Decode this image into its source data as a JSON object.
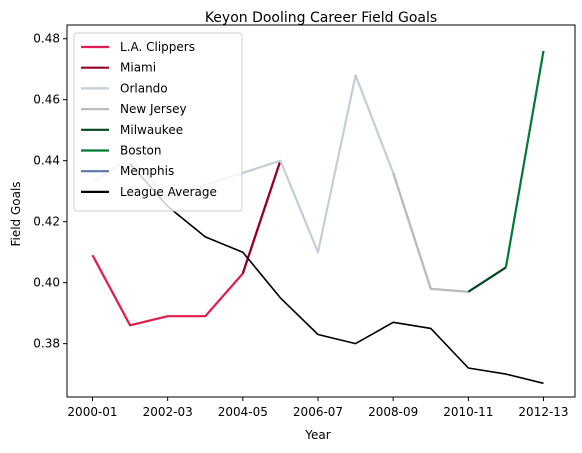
{
  "chart_data": {
    "type": "line",
    "title": "Keyon Dooling Career Field Goals",
    "xlabel": "Year",
    "ylabel": "Field Goals",
    "x": [
      "2000-01",
      "2001-02",
      "2002-03",
      "2003-04",
      "2004-05",
      "2005-06",
      "2006-07",
      "2007-08",
      "2008-09",
      "2009-10",
      "2010-11",
      "2011-12",
      "2012-13"
    ],
    "x_tick_labels": [
      "2000-01",
      "2002-03",
      "2004-05",
      "2006-07",
      "2008-09",
      "2010-11",
      "2012-13"
    ],
    "y_ticks": [
      "0.38",
      "0.40",
      "0.42",
      "0.44",
      "0.46",
      "0.48"
    ],
    "ylim": [
      0.3625,
      0.4845
    ],
    "grid": false,
    "legend_position": "top-left",
    "series": [
      {
        "name": "L.A. Clippers",
        "color": "#e31b4d",
        "points": [
          [
            "2000-01",
            0.409
          ],
          [
            "2001-02",
            0.386
          ],
          [
            "2002-03",
            0.389
          ],
          [
            "2003-04",
            0.389
          ],
          [
            "2004-05",
            0.403
          ],
          [
            "2005-06",
            0.44
          ]
        ]
      },
      {
        "name": "Miami",
        "color": "#98002e",
        "points": [
          [
            "2004-05",
            0.403
          ],
          [
            "2005-06",
            0.44
          ]
        ]
      },
      {
        "name": "Orlando",
        "color": "#c4ced4",
        "points": [
          [
            "2000-01",
            0.433
          ],
          [
            "2001-02",
            0.441
          ],
          [
            "2002-03",
            0.428
          ],
          [
            "2005-06",
            0.44
          ],
          [
            "2006-07",
            0.41
          ],
          [
            "2007-08",
            0.468
          ],
          [
            "2008-09",
            0.436
          ],
          [
            "2009-10",
            0.398
          ],
          [
            "2010-11",
            0.397
          ]
        ]
      },
      {
        "name": "New Jersey",
        "color": "#bbbbbb",
        "points": [
          [
            "2008-09",
            0.436
          ],
          [
            "2009-10",
            0.398
          ],
          [
            "2010-11",
            0.397
          ]
        ]
      },
      {
        "name": "Milwaukee",
        "color": "#00471b",
        "points": [
          [
            "2010-11",
            0.397
          ],
          [
            "2011-12",
            0.405
          ]
        ]
      },
      {
        "name": "Boston",
        "color": "#007a33",
        "points": [
          [
            "2011-12",
            0.405
          ],
          [
            "2012-13",
            0.476
          ]
        ]
      },
      {
        "name": "Memphis",
        "color": "#5d76a9",
        "points": []
      },
      {
        "name": "League Average",
        "color": "#000000",
        "points": [
          [
            "2001-02",
            0.439
          ],
          [
            "2002-03",
            0.425
          ],
          [
            "2003-04",
            0.415
          ],
          [
            "2004-05",
            0.41
          ],
          [
            "2005-06",
            0.395
          ],
          [
            "2006-07",
            0.383
          ],
          [
            "2007-08",
            0.38
          ],
          [
            "2008-09",
            0.387
          ],
          [
            "2009-10",
            0.385
          ],
          [
            "2010-11",
            0.372
          ],
          [
            "2011-12",
            0.37
          ],
          [
            "2012-13",
            0.367
          ]
        ]
      }
    ]
  }
}
